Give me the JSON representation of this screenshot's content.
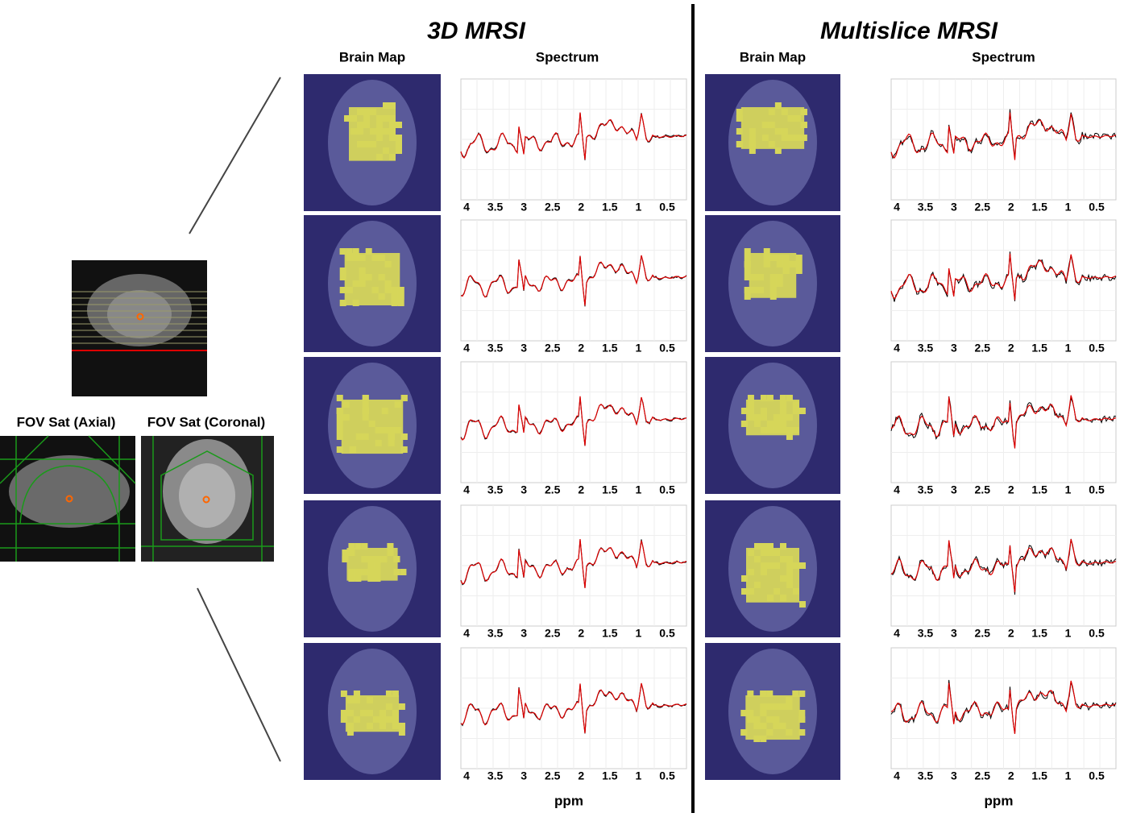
{
  "panels": [
    {
      "title": "3D MRSI",
      "map_header": "Brain Map",
      "spectrum_header": "Spectrum",
      "x_label": "ppm"
    },
    {
      "title": "Multislice MRSI",
      "map_header": "Brain Map",
      "spectrum_header": "Spectrum",
      "x_label": "ppm"
    }
  ],
  "localizer": {
    "axial_label": "FOV Sat (Axial)",
    "coronal_label": "FOV Sat (Coronal)"
  },
  "ppm_ticks": [
    4,
    3.5,
    3,
    2.5,
    2,
    1.5,
    1,
    0.5
  ]
}
